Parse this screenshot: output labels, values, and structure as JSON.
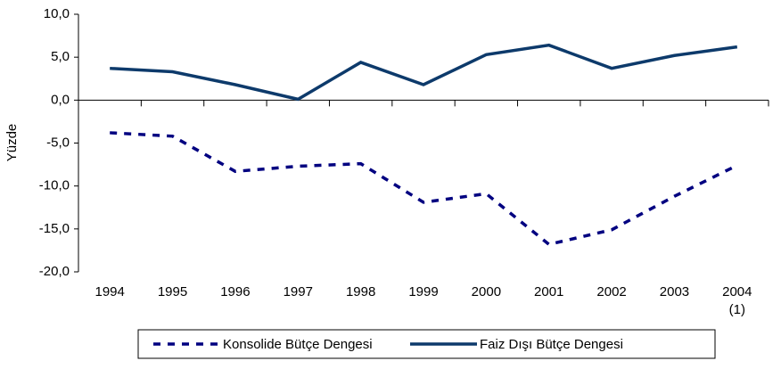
{
  "chart_data": {
    "type": "line",
    "y_label": "Yüzde",
    "categories": [
      "1994",
      "1995",
      "1996",
      "1997",
      "1998",
      "1999",
      "2000",
      "2001",
      "2002",
      "2003",
      "2004\n(1)"
    ],
    "series": [
      {
        "name": "Konsolide Bütçe Dengesi",
        "color": "#000080",
        "linestyle": "dashed",
        "values": [
          -3.8,
          -4.2,
          -8.3,
          -7.7,
          -7.4,
          -11.9,
          -10.9,
          -16.8,
          -15.1,
          -11.2,
          -7.6
        ]
      },
      {
        "name": "Faiz Dışı Bütçe Dengesi",
        "color": "#0d3a6b",
        "linestyle": "solid",
        "values": [
          3.7,
          3.3,
          1.8,
          0.1,
          4.4,
          1.8,
          5.3,
          6.4,
          3.7,
          5.2,
          6.2
        ]
      }
    ],
    "ylim": [
      -20,
      10
    ],
    "yticks": [
      {
        "value": -20,
        "label": "-20,0"
      },
      {
        "value": -15,
        "label": "-15,0"
      },
      {
        "value": -10,
        "label": "-10,0"
      },
      {
        "value": -5,
        "label": "-5,0"
      },
      {
        "value": 0,
        "label": "0,0"
      },
      {
        "value": 5,
        "label": "5,0"
      },
      {
        "value": 10,
        "label": "10,0"
      }
    ],
    "grid": false,
    "legend": "bottom"
  }
}
